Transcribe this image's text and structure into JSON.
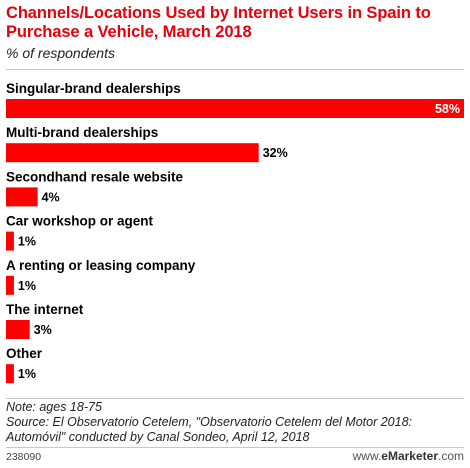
{
  "title": "Channels/Locations Used by Internet Users in Spain to Purchase a Vehicle, March 2018",
  "subtitle": "% of respondents",
  "notes": {
    "note": "Note: ages 18-75",
    "source": "Source: El Observatorio Cetelem, \"Observatorio Cetelem del Motor 2018: Automóvil\" conducted by Canal Sondeo, April 12, 2018"
  },
  "footer": {
    "chart_id": "238090",
    "brand_prefix": "www.",
    "brand_name": "eMarketer",
    "brand_suffix": ".com"
  },
  "colors": {
    "title": "#e8000b",
    "bar": "#ff0000",
    "inner_label": "#ffffff",
    "outer_label": "#000000"
  },
  "chart_data": {
    "type": "bar",
    "orientation": "horizontal",
    "categories": [
      "Singular-brand dealerships",
      "Multi-brand dealerships",
      "Secondhand resale website",
      "Car workshop or agent",
      "A renting or leasing company",
      "The internet",
      "Other"
    ],
    "values": [
      58,
      32,
      4,
      1,
      1,
      3,
      1
    ],
    "value_labels": [
      "58%",
      "32%",
      "4%",
      "1%",
      "1%",
      "3%",
      "1%"
    ],
    "unit": "%",
    "xlim": [
      0,
      58
    ],
    "grid": false,
    "legend": "none"
  }
}
